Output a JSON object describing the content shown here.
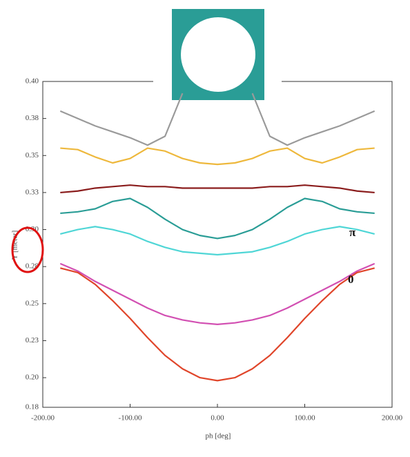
{
  "chart_data": {
    "type": "line",
    "x_label": "ph [deg]",
    "y_label": "Y [meter]",
    "annotations": [
      "π",
      "0"
    ],
    "x": [
      -180,
      -160,
      -140,
      -120,
      -100,
      -80,
      -60,
      -40,
      -20,
      0,
      20,
      40,
      60,
      80,
      100,
      120,
      140,
      160,
      180
    ],
    "xlim": [
      -200,
      200
    ],
    "xticks": [
      {
        "value": -200,
        "label": "-200.00"
      },
      {
        "value": -100,
        "label": "-100.00"
      },
      {
        "value": 0,
        "label": "0.00"
      },
      {
        "value": 100,
        "label": "100.00"
      },
      {
        "value": 200,
        "label": "200.00"
      }
    ],
    "ylim": [
      0.18,
      0.4
    ],
    "yticks": [
      {
        "value": 0.18,
        "label": "0.18"
      },
      {
        "value": 0.2,
        "label": "0.20"
      },
      {
        "value": 0.225,
        "label": "0.23"
      },
      {
        "value": 0.25,
        "label": "0.25"
      },
      {
        "value": 0.275,
        "label": "0.28"
      },
      {
        "value": 0.3,
        "label": "0.30"
      },
      {
        "value": 0.325,
        "label": "0.33"
      },
      {
        "value": 0.35,
        "label": "0.35"
      },
      {
        "value": 0.375,
        "label": "0.38"
      },
      {
        "value": 0.4,
        "label": "0.40"
      }
    ],
    "grid": false,
    "series": [
      {
        "color": "#9a9a9a",
        "values": [
          0.38,
          0.375,
          0.37,
          0.366,
          0.362,
          0.357,
          0.363,
          0.392,
          null,
          null,
          null,
          0.392,
          0.363,
          0.357,
          0.362,
          0.366,
          0.37,
          0.375,
          0.38
        ]
      },
      {
        "color": "#eeb83c",
        "values": [
          0.355,
          0.354,
          0.349,
          0.345,
          0.348,
          0.355,
          0.353,
          0.348,
          0.345,
          0.344,
          0.345,
          0.348,
          0.353,
          0.355,
          0.348,
          0.345,
          0.349,
          0.354,
          0.355
        ]
      },
      {
        "color": "#8a1c1c",
        "values": [
          0.325,
          0.326,
          0.328,
          0.329,
          0.33,
          0.329,
          0.329,
          0.328,
          0.328,
          0.328,
          0.328,
          0.328,
          0.329,
          0.329,
          0.33,
          0.329,
          0.328,
          0.326,
          0.325
        ]
      },
      {
        "color": "#2a9d96",
        "values": [
          0.311,
          0.312,
          0.314,
          0.319,
          0.321,
          0.315,
          0.307,
          0.3,
          0.296,
          0.294,
          0.296,
          0.3,
          0.307,
          0.315,
          0.321,
          0.319,
          0.314,
          0.312,
          0.311
        ]
      },
      {
        "color": "#4fd6d6",
        "values": [
          0.297,
          0.3,
          0.302,
          0.3,
          0.297,
          0.292,
          0.288,
          0.285,
          0.284,
          0.283,
          0.284,
          0.285,
          0.288,
          0.292,
          0.297,
          0.3,
          0.302,
          0.3,
          0.297
        ]
      },
      {
        "color": "#d24fb2",
        "values": [
          0.277,
          0.272,
          0.265,
          0.259,
          0.253,
          0.247,
          0.242,
          0.239,
          0.237,
          0.236,
          0.237,
          0.239,
          0.242,
          0.247,
          0.253,
          0.259,
          0.265,
          0.272,
          0.277
        ]
      },
      {
        "color": "#e0452a",
        "values": [
          0.274,
          0.271,
          0.263,
          0.252,
          0.24,
          0.227,
          0.215,
          0.206,
          0.2,
          0.198,
          0.2,
          0.206,
          0.215,
          0.227,
          0.24,
          0.252,
          0.263,
          0.271,
          0.274
        ]
      }
    ]
  }
}
